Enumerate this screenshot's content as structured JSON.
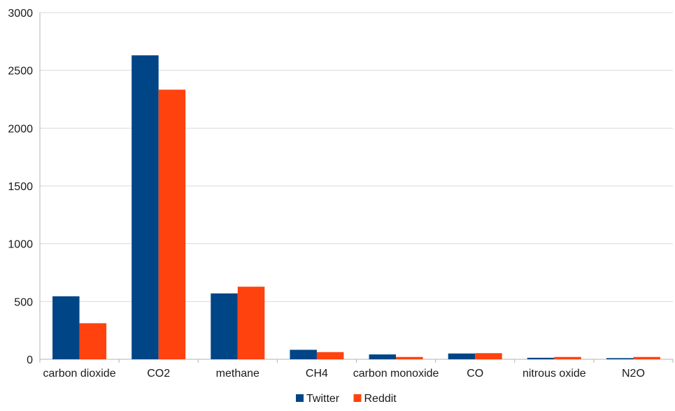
{
  "chart_data": {
    "type": "bar",
    "categories": [
      "carbon dioxide",
      "CO2",
      "methane",
      "CH4",
      "carbon monoxide",
      "CO",
      "nitrous oxide",
      "N2O"
    ],
    "series": [
      {
        "name": "Twitter",
        "color": "#004586",
        "values": [
          545,
          2630,
          570,
          82,
          42,
          50,
          13,
          10
        ]
      },
      {
        "name": "Reddit",
        "color": "#ff420e",
        "values": [
          312,
          2333,
          628,
          62,
          20,
          53,
          20,
          20
        ]
      }
    ],
    "ylim": [
      0,
      3000
    ],
    "yticks": [
      "0",
      "500",
      "1000",
      "1500",
      "2000",
      "2500",
      "3000"
    ],
    "grid": true,
    "legend_position": "bottom-center",
    "title": "",
    "xlabel": "",
    "ylabel": ""
  }
}
